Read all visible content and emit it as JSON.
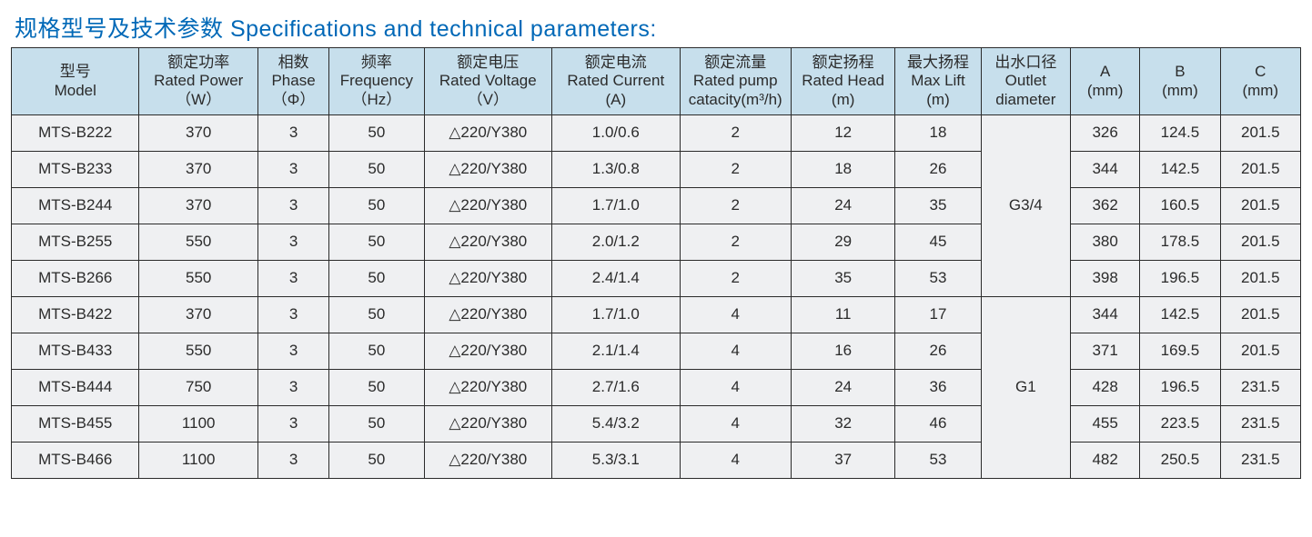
{
  "title": "规格型号及技术参数 Specifications and technical parameters:",
  "colors": {
    "title": "#0068b7",
    "header_bg": "#c7dfec",
    "cell_bg": "#eff0f2",
    "border": "#2b2b2b",
    "text": "#2b2b2b"
  },
  "headers": {
    "model": {
      "cn": "型号",
      "en": "Model",
      "unit": ""
    },
    "power": {
      "cn": "额定功率",
      "en": "Rated Power",
      "unit": "（W）"
    },
    "phase": {
      "cn": "相数",
      "en": "Phase",
      "unit": "（Φ）"
    },
    "freq": {
      "cn": "频率",
      "en": "Frequency",
      "unit": "（Hz）"
    },
    "volt": {
      "cn": "额定电压",
      "en": "Rated Voltage",
      "unit": "（V）"
    },
    "curr": {
      "cn": "额定电流",
      "en": "Rated Current",
      "unit": "(A)"
    },
    "flow": {
      "cn": "额定流量",
      "en": "Rated pump",
      "unit": "catacity(m³/h)"
    },
    "head": {
      "cn": "额定扬程",
      "en": "Rated Head",
      "unit": "(m)"
    },
    "lift": {
      "cn": "最大扬程",
      "en": "Max Lift",
      "unit": "(m)"
    },
    "outlet": {
      "cn": "出水口径",
      "en": "Outlet",
      "unit": "diameter"
    },
    "a": {
      "cn": "A",
      "en": "(mm)",
      "unit": ""
    },
    "b": {
      "cn": "B",
      "en": "(mm)",
      "unit": ""
    },
    "c": {
      "cn": "C",
      "en": "(mm)",
      "unit": ""
    }
  },
  "outlet_groups": [
    {
      "label": "G3/4",
      "span": 5
    },
    {
      "label": "G1",
      "span": 5
    }
  ],
  "rows": [
    {
      "model": "MTS-B222",
      "power": "370",
      "phase": "3",
      "freq": "50",
      "volt": "△220/Y380",
      "curr": "1.0/0.6",
      "flow": "2",
      "head": "12",
      "lift": "18",
      "a": "326",
      "b": "124.5",
      "c": "201.5"
    },
    {
      "model": "MTS-B233",
      "power": "370",
      "phase": "3",
      "freq": "50",
      "volt": "△220/Y380",
      "curr": "1.3/0.8",
      "flow": "2",
      "head": "18",
      "lift": "26",
      "a": "344",
      "b": "142.5",
      "c": "201.5"
    },
    {
      "model": "MTS-B244",
      "power": "370",
      "phase": "3",
      "freq": "50",
      "volt": "△220/Y380",
      "curr": "1.7/1.0",
      "flow": "2",
      "head": "24",
      "lift": "35",
      "a": "362",
      "b": "160.5",
      "c": "201.5"
    },
    {
      "model": "MTS-B255",
      "power": "550",
      "phase": "3",
      "freq": "50",
      "volt": "△220/Y380",
      "curr": "2.0/1.2",
      "flow": "2",
      "head": "29",
      "lift": "45",
      "a": "380",
      "b": "178.5",
      "c": "201.5"
    },
    {
      "model": "MTS-B266",
      "power": "550",
      "phase": "3",
      "freq": "50",
      "volt": "△220/Y380",
      "curr": "2.4/1.4",
      "flow": "2",
      "head": "35",
      "lift": "53",
      "a": "398",
      "b": "196.5",
      "c": "201.5"
    },
    {
      "model": "MTS-B422",
      "power": "370",
      "phase": "3",
      "freq": "50",
      "volt": "△220/Y380",
      "curr": "1.7/1.0",
      "flow": "4",
      "head": "11",
      "lift": "17",
      "a": "344",
      "b": "142.5",
      "c": "201.5"
    },
    {
      "model": "MTS-B433",
      "power": "550",
      "phase": "3",
      "freq": "50",
      "volt": "△220/Y380",
      "curr": "2.1/1.4",
      "flow": "4",
      "head": "16",
      "lift": "26",
      "a": "371",
      "b": "169.5",
      "c": "201.5"
    },
    {
      "model": "MTS-B444",
      "power": "750",
      "phase": "3",
      "freq": "50",
      "volt": "△220/Y380",
      "curr": "2.7/1.6",
      "flow": "4",
      "head": "24",
      "lift": "36",
      "a": "428",
      "b": "196.5",
      "c": "231.5"
    },
    {
      "model": "MTS-B455",
      "power": "1100",
      "phase": "3",
      "freq": "50",
      "volt": "△220/Y380",
      "curr": "5.4/3.2",
      "flow": "4",
      "head": "32",
      "lift": "46",
      "a": "455",
      "b": "223.5",
      "c": "231.5"
    },
    {
      "model": "MTS-B466",
      "power": "1100",
      "phase": "3",
      "freq": "50",
      "volt": "△220/Y380",
      "curr": "5.3/3.1",
      "flow": "4",
      "head": "37",
      "lift": "53",
      "a": "482",
      "b": "250.5",
      "c": "231.5"
    }
  ]
}
